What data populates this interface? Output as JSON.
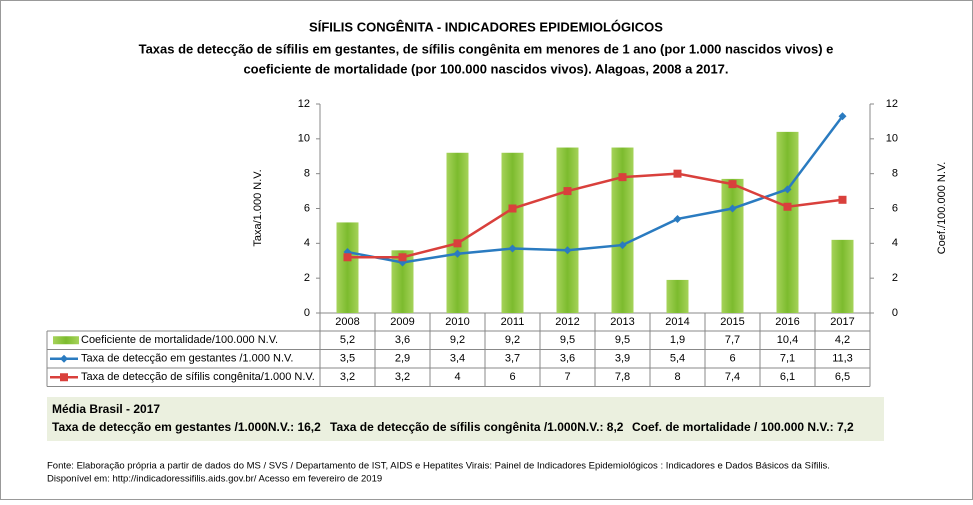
{
  "chart_data": {
    "type": "bar_line",
    "title": "SÍFILIS CONGÊNITA - INDICADORES EPIDEMIOLÓGICOS",
    "subtitle": [
      "Taxas de detecção de sífilis em gestantes, de sífilis congênita em menores de 1 ano (por 1.000 nascidos vivos) e",
      "coeficiente de mortalidade (por 100.000 nascidos vivos). Alagoas, 2008 a 2017."
    ],
    "ylabel": "Taxa/1.000 N.V.",
    "y2label": "Coef./100.000 N.V.",
    "categories": [
      "2008",
      "2009",
      "2010",
      "2011",
      "2012",
      "2013",
      "2014",
      "2015",
      "2016",
      "2017"
    ],
    "ylim": [
      0,
      12
    ],
    "yticks": [
      0,
      2,
      4,
      6,
      8,
      10,
      12
    ],
    "y2lim": [
      0,
      12
    ],
    "y2ticks": [
      0,
      2,
      4,
      6,
      8,
      10,
      12
    ],
    "series": [
      {
        "name": "Coeficiente de mortalidade/100.000 N.V.",
        "kind": "bar",
        "axis": "y2",
        "color": "#86c13a",
        "values": [
          5.2,
          3.6,
          9.2,
          9.2,
          9.5,
          9.5,
          1.9,
          7.7,
          10.4,
          4.2
        ],
        "value_labels": [
          "5,2",
          "3,6",
          "9,2",
          "9,2",
          "9,5",
          "9,5",
          "1,9",
          "7,7",
          "10,4",
          "4,2"
        ]
      },
      {
        "name": "Taxa de detecção em gestantes /1.000 N.V.",
        "kind": "line",
        "color": "#2a7bc0",
        "values": [
          3.5,
          2.9,
          3.4,
          3.7,
          3.6,
          3.9,
          5.4,
          6,
          7.1,
          11.3
        ],
        "value_labels": [
          "3,5",
          "2,9",
          "3,4",
          "3,7",
          "3,6",
          "3,9",
          "5,4",
          "6",
          "7,1",
          "11,3"
        ]
      },
      {
        "name": "Taxa de detecção de sífilis congênita/1.000 N.V.",
        "kind": "line",
        "color": "#d9403c",
        "values": [
          3.2,
          3.2,
          4,
          6,
          7,
          7.8,
          8,
          7.4,
          6.1,
          6.5
        ],
        "value_labels": [
          "3,2",
          "3,2",
          "4",
          "6",
          "7",
          "7,8",
          "8",
          "7,4",
          "6,1",
          "6,5"
        ]
      }
    ]
  },
  "summary": {
    "title": "Média Brasil - 2017",
    "items": [
      "Taxa  de detecção em gestantes /1.000N.V.: 16,2",
      "Taxa  de detecção  de sífilis  congênita  /1.000N.V.: 8,2",
      "Coef. de  mortalidade  / 100.000 N.V.: 7,2"
    ]
  },
  "source": [
    "Fonte: Elaboração própria a partir de dados do MS / SVS / Departamento de IST, AIDS e Hepatites Virais:  Painel de Indicadores Epidemiológicos : Indicadores e Dados Básicos da Sífilis.",
    "Disponível em: http://indicadoressifilis.aids.gov.br/    Acesso em fevereiro de 2019"
  ]
}
